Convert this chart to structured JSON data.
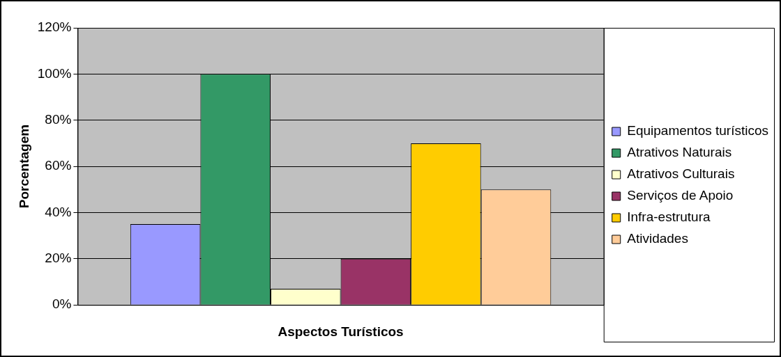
{
  "chart_data": {
    "type": "bar",
    "xlabel": "Aspectos Turísticos",
    "ylabel": "Porcentagem",
    "categories": [
      null
    ],
    "series": [
      {
        "name": "Equipamentos turísticos",
        "color": "#9999ff",
        "values": [
          35
        ]
      },
      {
        "name": "Atrativos Naturais",
        "color": "#339966",
        "values": [
          100
        ]
      },
      {
        "name": "Atrativos Culturais",
        "color": "#ffffcc",
        "values": [
          7
        ]
      },
      {
        "name": "Serviços de Apoio",
        "color": "#993366",
        "values": [
          20
        ]
      },
      {
        "name": "Infra-estrutura",
        "color": "#ffcc00",
        "values": [
          70
        ]
      },
      {
        "name": "Atividades",
        "color": "#ffcc99",
        "values": [
          50
        ]
      }
    ],
    "ylim": [
      0,
      120
    ],
    "yticks": [
      {
        "value": 0,
        "label": "0%"
      },
      {
        "value": 20,
        "label": "20%"
      },
      {
        "value": 40,
        "label": "40%"
      },
      {
        "value": 60,
        "label": "60%"
      },
      {
        "value": 80,
        "label": "80%"
      },
      {
        "value": 100,
        "label": "100%"
      },
      {
        "value": 120,
        "label": "120%"
      }
    ],
    "grid": "y",
    "legend": "right",
    "tick_labels": "y"
  }
}
